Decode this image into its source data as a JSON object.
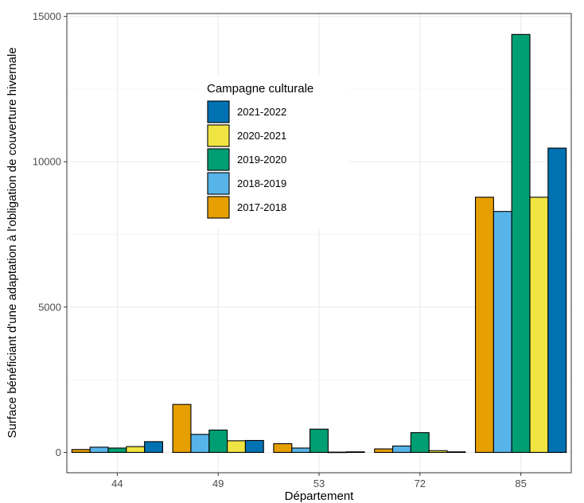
{
  "chart_data": {
    "type": "bar",
    "xlabel": "Département",
    "ylabel": "Surface bénéficiant d'une adaptation à l'obligation de couverture hivernale",
    "ylim": [
      -700,
      15100
    ],
    "yticks": [
      0,
      5000,
      10000,
      15000
    ],
    "ytick_labels": [
      "0",
      "5000",
      "10000",
      "15000"
    ],
    "categories": [
      "44",
      "49",
      "53",
      "72",
      "85"
    ],
    "grid": true,
    "legend": {
      "title": "Campagne culturale",
      "placement": "inside-top-center",
      "order": [
        "2021-2022",
        "2020-2021",
        "2019-2020",
        "2018-2019",
        "2017-2018"
      ]
    },
    "series": [
      {
        "name": "2017-2018",
        "color": "#E69F00",
        "values": [
          100,
          1650,
          300,
          120,
          8780
        ]
      },
      {
        "name": "2018-2019",
        "color": "#56B4E9",
        "values": [
          180,
          620,
          150,
          220,
          8290
        ]
      },
      {
        "name": "2019-2020",
        "color": "#009E73",
        "values": [
          150,
          770,
          800,
          680,
          14380
        ]
      },
      {
        "name": "2020-2021",
        "color": "#F0E442",
        "values": [
          200,
          400,
          10,
          60,
          8780
        ]
      },
      {
        "name": "2021-2022",
        "color": "#0072B2",
        "values": [
          370,
          410,
          20,
          20,
          10470
        ]
      }
    ]
  }
}
